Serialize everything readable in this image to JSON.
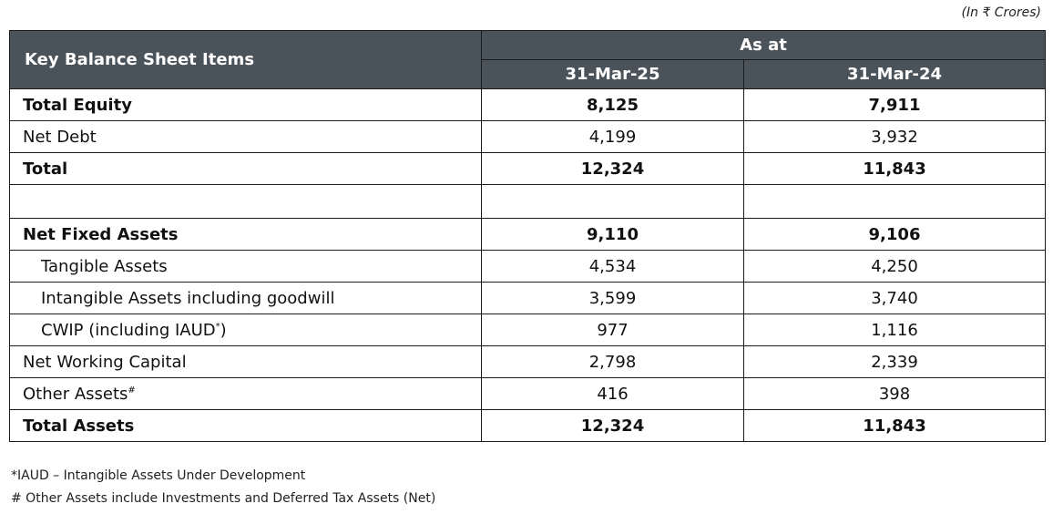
{
  "unit_note": "(In ₹ Crores)",
  "header": {
    "item_label": "Key Balance Sheet Items",
    "group_label": "As at",
    "columns": [
      "31-Mar-25",
      "31-Mar-24"
    ]
  },
  "rows": [
    {
      "label": "Total Equity",
      "mar25": "8,125",
      "mar24": "7,911",
      "bold": true
    },
    {
      "label": "Net Debt",
      "mar25": "4,199",
      "mar24": "3,932"
    },
    {
      "label": "Total",
      "mar25": "12,324",
      "mar24": "11,843",
      "bold": true
    },
    {
      "label": "",
      "mar25": "",
      "mar24": ""
    },
    {
      "label": "Net Fixed Assets",
      "mar25": "9,110",
      "mar24": "9,106",
      "bold": true
    },
    {
      "label": "Tangible Assets",
      "mar25": "4,534",
      "mar24": "4,250"
    },
    {
      "label": "Intangible Assets including goodwill",
      "mar25": "3,599",
      "mar24": "3,740"
    },
    {
      "label": "CWIP (including IAUD",
      "label_sup": "*",
      "label_tail": ")",
      "mar25": "977",
      "mar24": "1,116"
    },
    {
      "label": "Net Working Capital",
      "mar25": "2,798",
      "mar24": "2,339"
    },
    {
      "label": "Other Assets",
      "label_sup": "#",
      "mar25": "416",
      "mar24": "398"
    },
    {
      "label": "Total Assets",
      "mar25": "12,324",
      "mar24": "11,843",
      "bold": true
    }
  ],
  "footnotes": [
    "*IAUD – Intangible Assets Under Development",
    "# Other Assets include Investments and Deferred Tax Assets (Net)"
  ]
}
